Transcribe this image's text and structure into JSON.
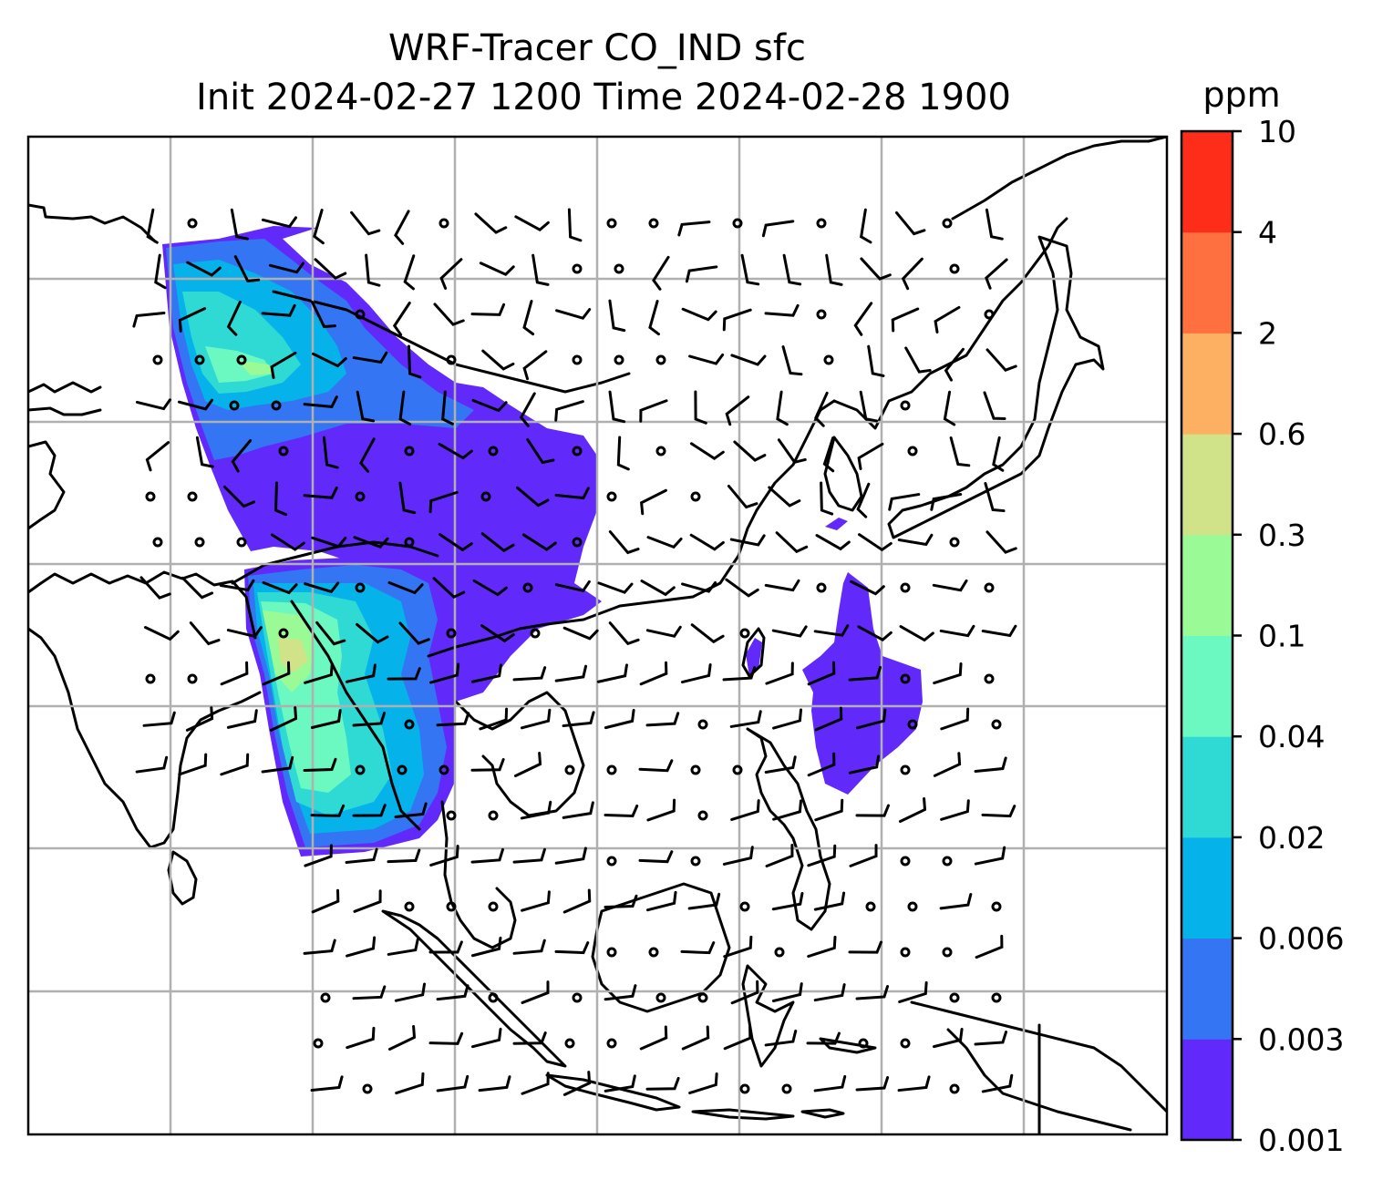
{
  "title": {
    "line1": "WRF-Tracer CO_IND sfc",
    "line2": "Init 2024-02-27 1200 Time 2024-02-28 1900"
  },
  "colorbar": {
    "unit": "ppm",
    "levels": [
      "0.001",
      "0.003",
      "0.006",
      "0.02",
      "0.04",
      "0.1",
      "0.3",
      "0.6",
      "2",
      "4",
      "10"
    ],
    "colors": [
      "#6229fb",
      "#3375f2",
      "#05b3ea",
      "#2fdad4",
      "#6cf8c1",
      "#99fa96",
      "#d1e388",
      "#fdb062",
      "#fe7040",
      "#fd2d19"
    ]
  },
  "map": {
    "projection": "lat-lon",
    "gridlines": true,
    "coastlines": true,
    "wind_barbs": true
  },
  "chart_data": {
    "type": "heatmap",
    "title": "WRF-Tracer CO_IND sfc\nInit 2024-02-27 1200 Time 2024-02-28 1900",
    "colorbar_label": "ppm",
    "colorbar_ticks": [
      0.001,
      0.003,
      0.006,
      0.02,
      0.04,
      0.1,
      0.3,
      0.6,
      2,
      4,
      10
    ],
    "legend": "right"
  }
}
